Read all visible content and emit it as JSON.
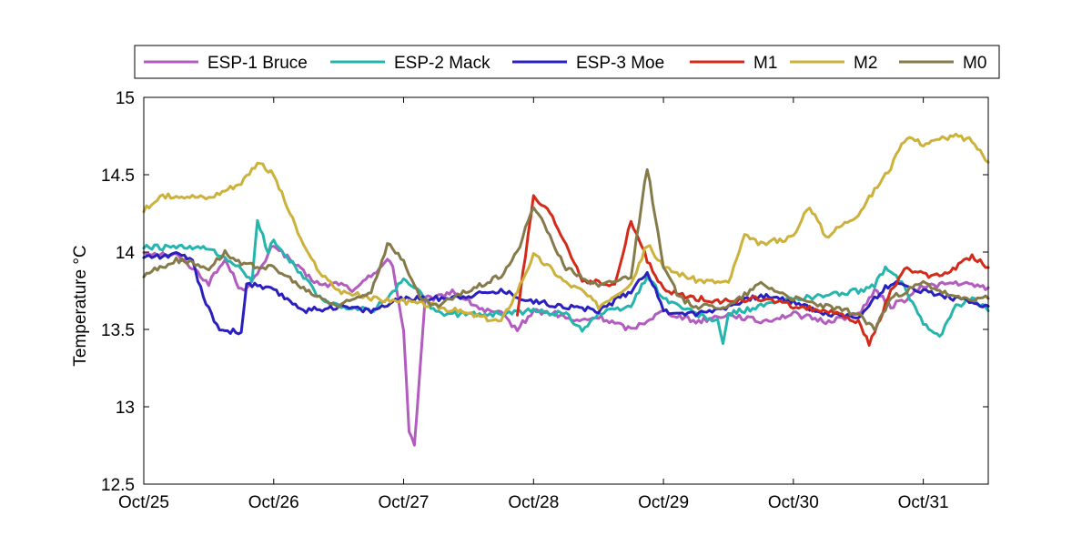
{
  "chart_data": {
    "type": "line",
    "title": "",
    "xlabel": "",
    "ylabel": "Temperature °C",
    "ylim": [
      12.5,
      15
    ],
    "xlim": [
      "2000-10-25 00:00",
      "2000-10-31 12:00"
    ],
    "x_ticks": [
      "Oct/25",
      "Oct/26",
      "Oct/27",
      "Oct/28",
      "Oct/29",
      "Oct/30",
      "Oct/31"
    ],
    "y_ticks": [
      "12.5",
      "13",
      "13.5",
      "14",
      "14.5",
      "15"
    ],
    "grid": false,
    "legend": "top",
    "series": [
      {
        "name": "ESP-1 Bruce",
        "color": "#b25cbf",
        "points": [
          [
            "Oct/25 00:00",
            14.0
          ],
          [
            "Oct/25 06:00",
            13.98
          ],
          [
            "Oct/25 09:00",
            13.9
          ],
          [
            "Oct/25 12:00",
            13.8
          ],
          [
            "Oct/25 15:00",
            13.95
          ],
          [
            "Oct/25 18:00",
            13.75
          ],
          [
            "Oct/25 21:00",
            13.85
          ],
          [
            "Oct/26 00:00",
            14.05
          ],
          [
            "Oct/26 03:00",
            13.95
          ],
          [
            "Oct/26 06:00",
            13.85
          ],
          [
            "Oct/26 09:00",
            13.78
          ],
          [
            "Oct/26 12:00",
            13.8
          ],
          [
            "Oct/26 15:00",
            13.75
          ],
          [
            "Oct/26 18:00",
            13.85
          ],
          [
            "Oct/26 21:00",
            13.95
          ],
          [
            "Oct/26 22:00",
            13.9
          ],
          [
            "Oct/27 00:00",
            13.5
          ],
          [
            "Oct/27 01:00",
            12.85
          ],
          [
            "Oct/27 02:00",
            12.75
          ],
          [
            "Oct/27 04:00",
            13.7
          ],
          [
            "Oct/27 06:00",
            13.7
          ],
          [
            "Oct/27 09:00",
            13.75
          ],
          [
            "Oct/27 12:00",
            13.68
          ],
          [
            "Oct/27 15:00",
            13.62
          ],
          [
            "Oct/27 18:00",
            13.6
          ],
          [
            "Oct/27 21:00",
            13.5
          ],
          [
            "Oct/28 00:00",
            13.62
          ],
          [
            "Oct/28 04:00",
            13.6
          ],
          [
            "Oct/28 08:00",
            13.55
          ],
          [
            "Oct/28 12:00",
            13.58
          ],
          [
            "Oct/28 18:00",
            13.5
          ],
          [
            "Oct/29 00:00",
            13.62
          ],
          [
            "Oct/29 06:00",
            13.55
          ],
          [
            "Oct/29 12:00",
            13.6
          ],
          [
            "Oct/29 18:00",
            13.55
          ],
          [
            "Oct/30 00:00",
            13.6
          ],
          [
            "Oct/30 06:00",
            13.55
          ],
          [
            "Oct/30 12:00",
            13.6
          ],
          [
            "Oct/30 15:00",
            13.75
          ],
          [
            "Oct/30 18:00",
            13.65
          ],
          [
            "Oct/30 21:00",
            13.7
          ],
          [
            "Oct/31 00:00",
            13.78
          ],
          [
            "Oct/31 06:00",
            13.8
          ],
          [
            "Oct/31 12:00",
            13.77
          ]
        ]
      },
      {
        "name": "ESP-2 Mack",
        "color": "#26b5ad",
        "points": [
          [
            "Oct/25 00:00",
            14.03
          ],
          [
            "Oct/25 06:00",
            14.03
          ],
          [
            "Oct/25 12:00",
            14.02
          ],
          [
            "Oct/25 15:00",
            13.95
          ],
          [
            "Oct/25 18:00",
            13.9
          ],
          [
            "Oct/25 20:00",
            13.8
          ],
          [
            "Oct/25 21:00",
            14.2
          ],
          [
            "Oct/25 23:00",
            14.0
          ],
          [
            "Oct/26 00:00",
            14.08
          ],
          [
            "Oct/26 03:00",
            13.95
          ],
          [
            "Oct/26 06:00",
            13.82
          ],
          [
            "Oct/26 09:00",
            13.68
          ],
          [
            "Oct/26 12:00",
            13.65
          ],
          [
            "Oct/26 18:00",
            13.62
          ],
          [
            "Oct/26 21:00",
            13.7
          ],
          [
            "Oct/27 00:00",
            13.82
          ],
          [
            "Oct/27 03:00",
            13.75
          ],
          [
            "Oct/27 06:00",
            13.6
          ],
          [
            "Oct/27 12:00",
            13.6
          ],
          [
            "Oct/27 18:00",
            13.6
          ],
          [
            "Oct/28 00:00",
            13.62
          ],
          [
            "Oct/28 06:00",
            13.6
          ],
          [
            "Oct/28 09:00",
            13.5
          ],
          [
            "Oct/28 12:00",
            13.6
          ],
          [
            "Oct/28 18:00",
            13.65
          ],
          [
            "Oct/28 21:00",
            13.85
          ],
          [
            "Oct/29 00:00",
            13.7
          ],
          [
            "Oct/29 06:00",
            13.6
          ],
          [
            "Oct/29 10:00",
            13.55
          ],
          [
            "Oct/29 11:00",
            13.4
          ],
          [
            "Oct/29 12:00",
            13.6
          ],
          [
            "Oct/29 18:00",
            13.65
          ],
          [
            "Oct/30 00:00",
            13.7
          ],
          [
            "Oct/30 06:00",
            13.72
          ],
          [
            "Oct/30 12:00",
            13.75
          ],
          [
            "Oct/30 15:00",
            13.78
          ],
          [
            "Oct/30 17:00",
            13.9
          ],
          [
            "Oct/30 20:00",
            13.8
          ],
          [
            "Oct/31 00:00",
            13.55
          ],
          [
            "Oct/31 03:00",
            13.45
          ],
          [
            "Oct/31 06:00",
            13.65
          ],
          [
            "Oct/31 09:00",
            13.7
          ],
          [
            "Oct/31 12:00",
            13.62
          ]
        ]
      },
      {
        "name": "ESP-3 Moe",
        "color": "#2a1fbf",
        "points": [
          [
            "Oct/25 00:00",
            13.97
          ],
          [
            "Oct/25 06:00",
            13.98
          ],
          [
            "Oct/25 09:00",
            13.95
          ],
          [
            "Oct/25 11:00",
            13.7
          ],
          [
            "Oct/25 14:00",
            13.5
          ],
          [
            "Oct/25 18:00",
            13.48
          ],
          [
            "Oct/25 19:00",
            13.8
          ],
          [
            "Oct/26 00:00",
            13.75
          ],
          [
            "Oct/26 06:00",
            13.62
          ],
          [
            "Oct/26 12:00",
            13.65
          ],
          [
            "Oct/26 18:00",
            13.62
          ],
          [
            "Oct/27 00:00",
            13.7
          ],
          [
            "Oct/27 06:00",
            13.7
          ],
          [
            "Oct/27 12:00",
            13.72
          ],
          [
            "Oct/27 18:00",
            13.75
          ],
          [
            "Oct/28 00:00",
            13.68
          ],
          [
            "Oct/28 06:00",
            13.65
          ],
          [
            "Oct/28 12:00",
            13.62
          ],
          [
            "Oct/28 18:00",
            13.75
          ],
          [
            "Oct/28 21:00",
            13.88
          ],
          [
            "Oct/29 00:00",
            13.62
          ],
          [
            "Oct/29 06:00",
            13.6
          ],
          [
            "Oct/29 12:00",
            13.65
          ],
          [
            "Oct/29 18:00",
            13.72
          ],
          [
            "Oct/30 00:00",
            13.68
          ],
          [
            "Oct/30 06:00",
            13.6
          ],
          [
            "Oct/30 12:00",
            13.58
          ],
          [
            "Oct/30 15:00",
            13.7
          ],
          [
            "Oct/30 18:00",
            13.8
          ],
          [
            "Oct/31 00:00",
            13.75
          ],
          [
            "Oct/31 06:00",
            13.7
          ],
          [
            "Oct/31 12:00",
            13.65
          ]
        ]
      },
      {
        "name": "M1",
        "color": "#d42a1a",
        "points": [
          [
            "Oct/27 21:00",
            13.6
          ],
          [
            "Oct/28 00:00",
            14.35
          ],
          [
            "Oct/28 03:00",
            14.25
          ],
          [
            "Oct/28 06:00",
            14.05
          ],
          [
            "Oct/28 09:00",
            13.82
          ],
          [
            "Oct/28 12:00",
            13.8
          ],
          [
            "Oct/28 15:00",
            13.78
          ],
          [
            "Oct/28 18:00",
            14.2
          ],
          [
            "Oct/28 21:00",
            13.95
          ],
          [
            "Oct/29 00:00",
            13.75
          ],
          [
            "Oct/29 06:00",
            13.7
          ],
          [
            "Oct/29 12:00",
            13.68
          ],
          [
            "Oct/29 18:00",
            13.7
          ],
          [
            "Oct/30 00:00",
            13.65
          ],
          [
            "Oct/30 06:00",
            13.62
          ],
          [
            "Oct/30 12:00",
            13.55
          ],
          [
            "Oct/30 14:00",
            13.4
          ],
          [
            "Oct/30 18:00",
            13.75
          ],
          [
            "Oct/30 21:00",
            13.9
          ],
          [
            "Oct/31 00:00",
            13.85
          ],
          [
            "Oct/31 03:00",
            13.85
          ],
          [
            "Oct/31 06:00",
            13.9
          ],
          [
            "Oct/31 09:00",
            13.98
          ],
          [
            "Oct/31 12:00",
            13.9
          ]
        ]
      },
      {
        "name": "M2",
        "color": "#ccb13a",
        "points": [
          [
            "Oct/25 00:00",
            14.27
          ],
          [
            "Oct/25 03:00",
            14.35
          ],
          [
            "Oct/25 06:00",
            14.37
          ],
          [
            "Oct/25 12:00",
            14.35
          ],
          [
            "Oct/25 18:00",
            14.45
          ],
          [
            "Oct/25 21:00",
            14.58
          ],
          [
            "Oct/26 00:00",
            14.5
          ],
          [
            "Oct/26 03:00",
            14.25
          ],
          [
            "Oct/26 06:00",
            14.0
          ],
          [
            "Oct/26 09:00",
            13.85
          ],
          [
            "Oct/26 12:00",
            13.75
          ],
          [
            "Oct/26 18:00",
            13.7
          ],
          [
            "Oct/27 00:00",
            13.68
          ],
          [
            "Oct/27 06:00",
            13.65
          ],
          [
            "Oct/27 12:00",
            13.6
          ],
          [
            "Oct/27 18:00",
            13.55
          ],
          [
            "Oct/27 21:00",
            13.75
          ],
          [
            "Oct/28 00:00",
            13.98
          ],
          [
            "Oct/28 03:00",
            13.9
          ],
          [
            "Oct/28 06:00",
            13.8
          ],
          [
            "Oct/28 09:00",
            13.75
          ],
          [
            "Oct/28 12:00",
            13.65
          ],
          [
            "Oct/28 18:00",
            13.8
          ],
          [
            "Oct/28 21:00",
            14.05
          ],
          [
            "Oct/29 00:00",
            13.9
          ],
          [
            "Oct/29 06:00",
            13.82
          ],
          [
            "Oct/29 12:00",
            13.8
          ],
          [
            "Oct/29 15:00",
            14.1
          ],
          [
            "Oct/29 18:00",
            14.05
          ],
          [
            "Oct/30 00:00",
            14.1
          ],
          [
            "Oct/30 03:00",
            14.3
          ],
          [
            "Oct/30 06:00",
            14.1
          ],
          [
            "Oct/30 12:00",
            14.25
          ],
          [
            "Oct/30 18:00",
            14.55
          ],
          [
            "Oct/30 21:00",
            14.75
          ],
          [
            "Oct/31 00:00",
            14.7
          ],
          [
            "Oct/31 06:00",
            14.75
          ],
          [
            "Oct/31 09:00",
            14.72
          ],
          [
            "Oct/31 12:00",
            14.58
          ]
        ]
      },
      {
        "name": "M0",
        "color": "#857a4a",
        "points": [
          [
            "Oct/25 00:00",
            13.85
          ],
          [
            "Oct/25 06:00",
            13.95
          ],
          [
            "Oct/25 12:00",
            13.9
          ],
          [
            "Oct/25 15:00",
            14.0
          ],
          [
            "Oct/25 18:00",
            13.92
          ],
          [
            "Oct/26 00:00",
            13.9
          ],
          [
            "Oct/26 06:00",
            13.75
          ],
          [
            "Oct/26 12:00",
            13.65
          ],
          [
            "Oct/26 18:00",
            13.75
          ],
          [
            "Oct/26 21:00",
            14.05
          ],
          [
            "Oct/27 00:00",
            13.95
          ],
          [
            "Oct/27 03:00",
            13.7
          ],
          [
            "Oct/27 06:00",
            13.65
          ],
          [
            "Oct/27 12:00",
            13.75
          ],
          [
            "Oct/27 18:00",
            13.85
          ],
          [
            "Oct/27 21:00",
            14.0
          ],
          [
            "Oct/28 00:00",
            14.3
          ],
          [
            "Oct/28 03:00",
            14.1
          ],
          [
            "Oct/28 06:00",
            13.9
          ],
          [
            "Oct/28 12:00",
            13.78
          ],
          [
            "Oct/28 18:00",
            13.85
          ],
          [
            "Oct/28 21:00",
            14.55
          ],
          [
            "Oct/29 00:00",
            13.9
          ],
          [
            "Oct/29 03:00",
            13.7
          ],
          [
            "Oct/29 06:00",
            13.65
          ],
          [
            "Oct/29 12:00",
            13.65
          ],
          [
            "Oct/29 18:00",
            13.8
          ],
          [
            "Oct/30 00:00",
            13.7
          ],
          [
            "Oct/30 06:00",
            13.65
          ],
          [
            "Oct/30 12:00",
            13.6
          ],
          [
            "Oct/30 15:00",
            13.5
          ],
          [
            "Oct/30 18:00",
            13.7
          ],
          [
            "Oct/30 21:00",
            13.75
          ],
          [
            "Oct/31 00:00",
            13.8
          ],
          [
            "Oct/31 06:00",
            13.7
          ],
          [
            "Oct/31 12:00",
            13.7
          ]
        ]
      }
    ]
  }
}
